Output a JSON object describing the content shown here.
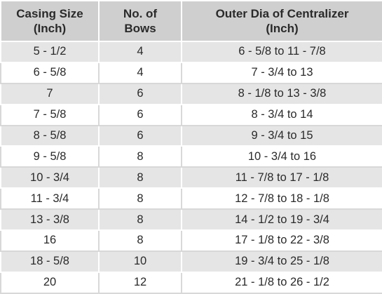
{
  "table": {
    "header": [
      [
        "Casing Size",
        "(Inch)"
      ],
      [
        "No. of",
        "Bows"
      ],
      [
        "Outer Dia of Centralizer",
        "(Inch)"
      ]
    ],
    "rows": [
      [
        "5 - 1/2",
        "4",
        "6 - 5/8 to 11 - 7/8"
      ],
      [
        "6 - 5/8",
        "4",
        "7 - 3/4 to 13"
      ],
      [
        "7",
        "6",
        "8 - 1/8 to 13 - 3/8"
      ],
      [
        "7 - 5/8",
        "6",
        "8 - 3/4 to 14"
      ],
      [
        "8 - 5/8",
        "6",
        "9 - 3/4 to 15"
      ],
      [
        "9 - 5/8",
        "8",
        "10 - 3/4 to 16"
      ],
      [
        "10 - 3/4",
        "8",
        "11 - 7/8 to 17 - 1/8"
      ],
      [
        "11 - 3/4",
        "8",
        "12 - 7/8 to 18 - 1/8"
      ],
      [
        "13 - 3/8",
        "8",
        "14 - 1/2 to 19 - 3/4"
      ],
      [
        "16",
        "8",
        "17 - 1/8 to 22 - 3/8"
      ],
      [
        "18 - 5/8",
        "10",
        "19 - 3/4 to 25 - 1/8"
      ],
      [
        "20",
        "12",
        "21 - 1/8 to 26 - 1/2"
      ]
    ]
  }
}
